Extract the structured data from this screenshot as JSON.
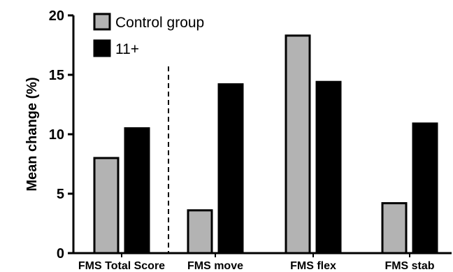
{
  "chart_data": {
    "type": "bar",
    "title": "",
    "xlabel": "",
    "ylabel": "Mean change (%)",
    "ylim": [
      0,
      20
    ],
    "yticks": [
      0,
      5,
      10,
      15,
      20
    ],
    "grid": false,
    "legend_position": "top-left",
    "categories": [
      "FMS Total Score",
      "FMS move",
      "FMS flex",
      "FMS stab"
    ],
    "separator_after_category": 0,
    "series": [
      {
        "name": "Control group",
        "color": "#b3b3b3",
        "values": [
          8.0,
          3.6,
          18.3,
          4.2
        ]
      },
      {
        "name": "11+",
        "color": "#000000",
        "values": [
          10.5,
          14.2,
          14.4,
          10.9
        ]
      }
    ]
  }
}
